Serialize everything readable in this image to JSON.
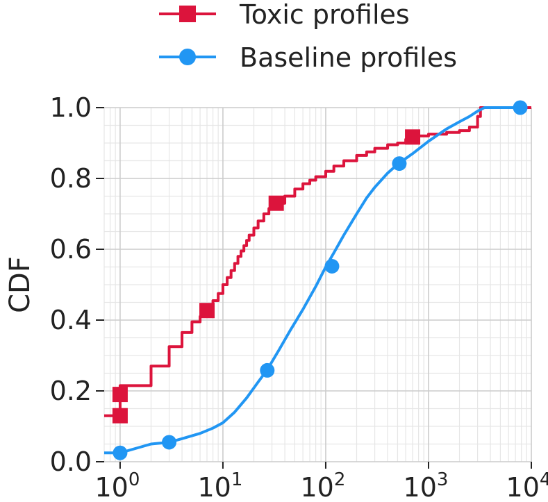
{
  "chart_data": {
    "type": "line",
    "title": "",
    "xlabel": "",
    "ylabel": "CDF",
    "xscale": "log",
    "xlim": [
      0.7,
      10000
    ],
    "ylim": [
      0.0,
      1.0
    ],
    "grid": true,
    "legend_position": "top",
    "x_tick_labels": [
      {
        "base": "10",
        "exp": "0"
      },
      {
        "base": "10",
        "exp": "1"
      },
      {
        "base": "10",
        "exp": "2"
      },
      {
        "base": "10",
        "exp": "3"
      },
      {
        "base": "10",
        "exp": "4"
      }
    ],
    "x_tick_values": [
      1,
      10,
      100,
      1000,
      10000
    ],
    "y_tick_labels": [
      "0.0",
      "0.2",
      "0.4",
      "0.6",
      "0.8",
      "1.0"
    ],
    "y_tick_values": [
      0.0,
      0.2,
      0.4,
      0.6,
      0.8,
      1.0
    ],
    "series": [
      {
        "name": "Toxic profiles",
        "color": "#dc143c",
        "marker": "square",
        "step": true,
        "x": [
          0.7,
          1,
          1,
          1.5,
          2,
          3,
          4,
          5,
          6,
          7,
          8,
          9,
          10,
          11,
          12,
          13,
          14,
          15,
          16,
          17,
          18,
          20,
          22,
          25,
          28,
          31,
          33,
          40,
          50,
          60,
          70,
          80,
          100,
          120,
          150,
          200,
          250,
          300,
          400,
          500,
          600,
          700,
          800,
          1000,
          1500,
          2000,
          2500,
          3000,
          3200,
          3500,
          10000
        ],
        "y": [
          0.13,
          0.13,
          0.215,
          0.215,
          0.27,
          0.325,
          0.365,
          0.395,
          0.41,
          0.43,
          0.455,
          0.475,
          0.5,
          0.52,
          0.54,
          0.56,
          0.58,
          0.595,
          0.61,
          0.625,
          0.64,
          0.66,
          0.68,
          0.7,
          0.715,
          0.725,
          0.73,
          0.75,
          0.77,
          0.785,
          0.795,
          0.805,
          0.82,
          0.835,
          0.85,
          0.865,
          0.875,
          0.885,
          0.895,
          0.9,
          0.91,
          0.917,
          0.92,
          0.925,
          0.93,
          0.935,
          0.945,
          0.975,
          1.0,
          1.0,
          1.0
        ],
        "markers": [
          [
            1,
            0.13
          ],
          [
            1,
            0.19
          ],
          [
            7,
            0.427
          ],
          [
            33,
            0.73
          ],
          [
            700,
            0.917
          ]
        ]
      },
      {
        "name": "Baseline profiles",
        "color": "#2196f3",
        "marker": "circle",
        "step": false,
        "x": [
          0.7,
          1,
          2,
          3,
          4,
          6,
          8,
          10,
          13,
          17,
          22,
          27,
          35,
          45,
          60,
          80,
          100,
          120,
          150,
          200,
          250,
          300,
          400,
          500,
          700,
          1000,
          1500,
          2000,
          2500,
          3000,
          3500,
          5000,
          8000
        ],
        "y": [
          0.025,
          0.025,
          0.05,
          0.055,
          0.065,
          0.08,
          0.095,
          0.11,
          0.14,
          0.18,
          0.225,
          0.26,
          0.315,
          0.37,
          0.43,
          0.495,
          0.55,
          0.59,
          0.64,
          0.7,
          0.745,
          0.775,
          0.815,
          0.84,
          0.87,
          0.905,
          0.94,
          0.96,
          0.975,
          0.99,
          1.0,
          1.0,
          1.0
        ],
        "markers": [
          [
            1,
            0.025
          ],
          [
            3,
            0.055
          ],
          [
            27,
            0.258
          ],
          [
            115,
            0.552
          ],
          [
            520,
            0.842
          ],
          [
            7800,
            1.0
          ]
        ]
      }
    ]
  }
}
